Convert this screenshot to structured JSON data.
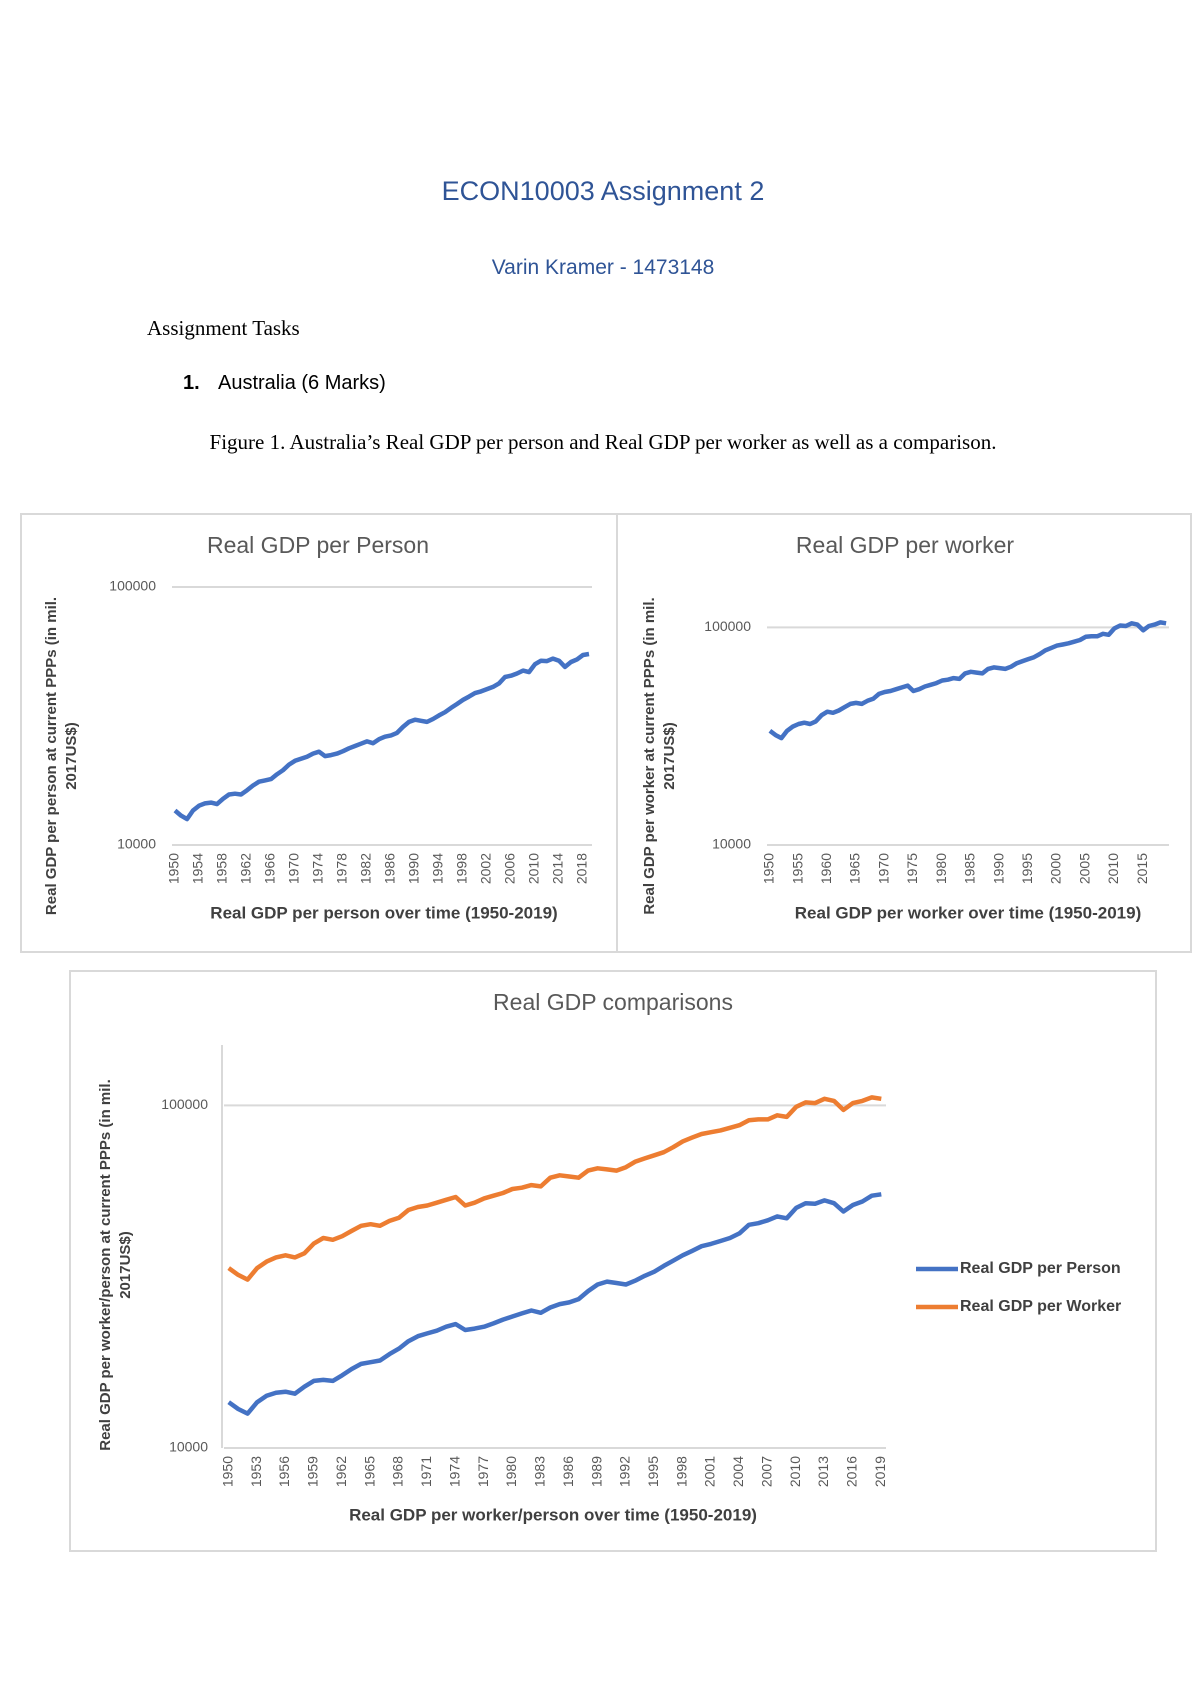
{
  "document": {
    "title": "ECON10003 Assignment 2",
    "author": "Varin Kramer - 1473148",
    "heading": "Assignment Tasks",
    "list_number": "1.",
    "list_item": "Australia (6 Marks)",
    "caption": "Figure 1. Australia’s Real GDP per person and Real GDP per worker as well as a comparison."
  },
  "chart_data": [
    {
      "type": "line",
      "title": "Real GDP per Person",
      "x_label": "Real GDP per person over time (1950-2019)",
      "y_label": "Real GDP per person at current PPPs (in mil. 2017US$)",
      "log_y": true,
      "grid": true,
      "x": [
        1950,
        1951,
        1952,
        1953,
        1954,
        1955,
        1956,
        1957,
        1958,
        1959,
        1960,
        1961,
        1962,
        1963,
        1964,
        1965,
        1966,
        1967,
        1968,
        1969,
        1970,
        1971,
        1972,
        1973,
        1974,
        1975,
        1976,
        1977,
        1978,
        1979,
        1980,
        1981,
        1982,
        1983,
        1984,
        1985,
        1986,
        1987,
        1988,
        1989,
        1990,
        1991,
        1992,
        1993,
        1994,
        1995,
        1996,
        1997,
        1998,
        1999,
        2000,
        2001,
        2002,
        2003,
        2004,
        2005,
        2006,
        2007,
        2008,
        2009,
        2010,
        2011,
        2012,
        2013,
        2014,
        2015,
        2016,
        2017,
        2018,
        2019
      ],
      "xticks": [
        1950,
        1954,
        1958,
        1962,
        1966,
        1970,
        1974,
        1978,
        1982,
        1986,
        1990,
        1994,
        1998,
        2002,
        2006,
        2010,
        2014,
        2018
      ],
      "ylim": [
        10000,
        100000
      ],
      "yticks": [
        10000,
        100000
      ],
      "series": [
        {
          "color": "#4472c4",
          "values": [
            13600,
            13000,
            12600,
            13600,
            14200,
            14500,
            14600,
            14400,
            15100,
            15700,
            15800,
            15700,
            16300,
            17000,
            17600,
            17800,
            18000,
            18800,
            19500,
            20500,
            21200,
            21600,
            22000,
            22600,
            23000,
            22100,
            22300,
            22600,
            23100,
            23700,
            24200,
            24700,
            25200,
            24800,
            25700,
            26300,
            26600,
            27200,
            28700,
            30000,
            30600,
            30300,
            30000,
            30800,
            31800,
            32700,
            34000,
            35200,
            36500,
            37600,
            38800,
            39400,
            40200,
            41000,
            42300,
            44800,
            45300,
            46200,
            47400,
            46800,
            50200,
            51800,
            51600,
            52800,
            51800,
            49000,
            51200,
            52400,
            54500,
            55000
          ]
        }
      ]
    },
    {
      "type": "line",
      "title": "Real GDP per worker",
      "x_label": "Real GDP per worker over time (1950-2019)",
      "y_label": "Real GDP per worker at current PPPs (in mil. 2017US$)",
      "log_y": true,
      "grid": true,
      "x": [
        1950,
        1951,
        1952,
        1953,
        1954,
        1955,
        1956,
        1957,
        1958,
        1959,
        1960,
        1961,
        1962,
        1963,
        1964,
        1965,
        1966,
        1967,
        1968,
        1969,
        1970,
        1971,
        1972,
        1973,
        1974,
        1975,
        1976,
        1977,
        1978,
        1979,
        1980,
        1981,
        1982,
        1983,
        1984,
        1985,
        1986,
        1987,
        1988,
        1989,
        1990,
        1991,
        1992,
        1993,
        1994,
        1995,
        1996,
        1997,
        1998,
        1999,
        2000,
        2001,
        2002,
        2003,
        2004,
        2005,
        2006,
        2007,
        2008,
        2009,
        2010,
        2011,
        2012,
        2013,
        2014,
        2015,
        2016,
        2017,
        2018,
        2019
      ],
      "xticks": [
        1950,
        1955,
        1960,
        1965,
        1970,
        1975,
        1980,
        1985,
        1990,
        1995,
        2000,
        2005,
        2010,
        2015
      ],
      "ylim": [
        10000,
        160000
      ],
      "yticks": [
        10000,
        100000
      ],
      "series": [
        {
          "color": "#4472c4",
          "values": [
            33500,
            32000,
            31000,
            33500,
            35000,
            36000,
            36500,
            36000,
            37000,
            39500,
            41000,
            40500,
            41500,
            43000,
            44500,
            45000,
            44500,
            46000,
            47000,
            49500,
            50500,
            51000,
            52000,
            53000,
            54000,
            51000,
            52000,
            53500,
            54500,
            55500,
            57000,
            57500,
            58500,
            58000,
            61500,
            62500,
            62000,
            61500,
            64500,
            65500,
            65000,
            64500,
            66000,
            68500,
            70000,
            71500,
            73000,
            75500,
            78500,
            80500,
            82500,
            83500,
            84500,
            86000,
            87500,
            90500,
            91000,
            91000,
            93500,
            92500,
            99000,
            102000,
            101500,
            104500,
            103000,
            97000,
            101500,
            103000,
            105500,
            104500
          ]
        }
      ]
    },
    {
      "type": "line",
      "title": "Real GDP comparisons",
      "x_label": "Real GDP per worker/person over time (1950-2019)",
      "y_label": "Real GDP per worker/person at current PPPs (in mil. 2017US$)",
      "log_y": true,
      "grid": true,
      "y_axis_line": true,
      "legend": "right",
      "x": [
        1950,
        1951,
        1952,
        1953,
        1954,
        1955,
        1956,
        1957,
        1958,
        1959,
        1960,
        1961,
        1962,
        1963,
        1964,
        1965,
        1966,
        1967,
        1968,
        1969,
        1970,
        1971,
        1972,
        1973,
        1974,
        1975,
        1976,
        1977,
        1978,
        1979,
        1980,
        1981,
        1982,
        1983,
        1984,
        1985,
        1986,
        1987,
        1988,
        1989,
        1990,
        1991,
        1992,
        1993,
        1994,
        1995,
        1996,
        1997,
        1998,
        1999,
        2000,
        2001,
        2002,
        2003,
        2004,
        2005,
        2006,
        2007,
        2008,
        2009,
        2010,
        2011,
        2012,
        2013,
        2014,
        2015,
        2016,
        2017,
        2018,
        2019
      ],
      "xticks": [
        1950,
        1953,
        1956,
        1959,
        1962,
        1965,
        1968,
        1971,
        1974,
        1977,
        1980,
        1983,
        1986,
        1989,
        1992,
        1995,
        1998,
        2001,
        2004,
        2007,
        2010,
        2013,
        2016,
        2019
      ],
      "ylim": [
        10000,
        150000
      ],
      "yticks": [
        10000,
        100000
      ],
      "series": [
        {
          "name": "Real GDP per Person",
          "color": "#4472c4",
          "values": [
            13600,
            13000,
            12600,
            13600,
            14200,
            14500,
            14600,
            14400,
            15100,
            15700,
            15800,
            15700,
            16300,
            17000,
            17600,
            17800,
            18000,
            18800,
            19500,
            20500,
            21200,
            21600,
            22000,
            22600,
            23000,
            22100,
            22300,
            22600,
            23100,
            23700,
            24200,
            24700,
            25200,
            24800,
            25700,
            26300,
            26600,
            27200,
            28700,
            30000,
            30600,
            30300,
            30000,
            30800,
            31800,
            32700,
            34000,
            35200,
            36500,
            37600,
            38800,
            39400,
            40200,
            41000,
            42300,
            44800,
            45300,
            46200,
            47400,
            46800,
            50200,
            51800,
            51600,
            52800,
            51800,
            49000,
            51200,
            52400,
            54500,
            55000
          ]
        },
        {
          "name": "Real GDP per Worker",
          "color": "#ed7d31",
          "values": [
            33500,
            32000,
            31000,
            33500,
            35000,
            36000,
            36500,
            36000,
            37000,
            39500,
            41000,
            40500,
            41500,
            43000,
            44500,
            45000,
            44500,
            46000,
            47000,
            49500,
            50500,
            51000,
            52000,
            53000,
            54000,
            51000,
            52000,
            53500,
            54500,
            55500,
            57000,
            57500,
            58500,
            58000,
            61500,
            62500,
            62000,
            61500,
            64500,
            65500,
            65000,
            64500,
            66000,
            68500,
            70000,
            71500,
            73000,
            75500,
            78500,
            80500,
            82500,
            83500,
            84500,
            86000,
            87500,
            90500,
            91000,
            91000,
            93500,
            92500,
            99000,
            102000,
            101500,
            104500,
            103000,
            97000,
            101500,
            103000,
            105500,
            104500
          ]
        }
      ]
    }
  ]
}
